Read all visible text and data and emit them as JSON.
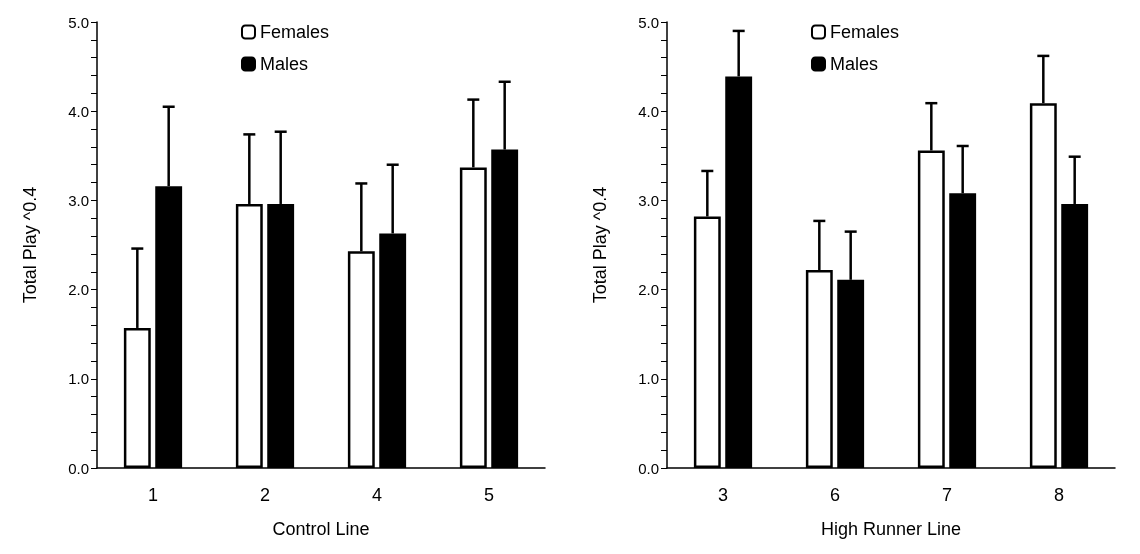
{
  "chart_data": [
    {
      "type": "bar",
      "xlabel": "Control Line",
      "ylabel": "Total Play ^0.4",
      "categories": [
        "1",
        "2",
        "4",
        "5"
      ],
      "series": [
        {
          "name": "Females",
          "color": "#ffffff",
          "values": [
            1.57,
            2.96,
            2.43,
            3.37
          ],
          "errors": [
            [
              1.57,
              2.46
            ],
            [
              2.96,
              3.74
            ],
            [
              2.43,
              3.19
            ],
            [
              3.37,
              4.13
            ]
          ]
        },
        {
          "name": "Males",
          "color": "#000000",
          "values": [
            3.16,
            2.96,
            2.63,
            3.57
          ],
          "errors": [
            [
              3.16,
              4.05
            ],
            [
              2.96,
              3.77
            ],
            [
              2.63,
              3.4
            ],
            [
              3.57,
              4.33
            ]
          ]
        }
      ],
      "ylim": [
        0,
        5
      ],
      "yticks": [
        {
          "value": 0,
          "label": "0.0"
        },
        {
          "value": 0.2,
          "label": null
        },
        {
          "value": 0.4,
          "label": null
        },
        {
          "value": 0.6,
          "label": null
        },
        {
          "value": 0.8,
          "label": null
        },
        {
          "value": 1,
          "label": "1.0"
        },
        {
          "value": 1.2,
          "label": null
        },
        {
          "value": 1.4,
          "label": null
        },
        {
          "value": 1.6,
          "label": null
        },
        {
          "value": 1.8,
          "label": null
        },
        {
          "value": 2,
          "label": "2.0"
        },
        {
          "value": 2.2,
          "label": null
        },
        {
          "value": 2.4,
          "label": null
        },
        {
          "value": 2.6,
          "label": null
        },
        {
          "value": 2.8,
          "label": null
        },
        {
          "value": 3,
          "label": "3.0"
        },
        {
          "value": 3.2,
          "label": null
        },
        {
          "value": 3.4,
          "label": null
        },
        {
          "value": 3.6,
          "label": null
        },
        {
          "value": 3.8,
          "label": null
        },
        {
          "value": 4,
          "label": "4.0"
        },
        {
          "value": 4.2,
          "label": null
        },
        {
          "value": 4.4,
          "label": null
        },
        {
          "value": 4.6,
          "label": null
        },
        {
          "value": 4.8,
          "label": null
        },
        {
          "value": 5,
          "label": "5.0"
        }
      ],
      "grid": false,
      "legend": "top"
    },
    {
      "type": "bar",
      "xlabel": "High Runner Line",
      "ylabel": "Total Play ^0.4",
      "categories": [
        "3",
        "6",
        "7",
        "8"
      ],
      "series": [
        {
          "name": "Females",
          "color": "#ffffff",
          "values": [
            2.82,
            2.22,
            3.56,
            4.09
          ],
          "errors": [
            [
              2.82,
              3.33
            ],
            [
              2.22,
              2.77
            ],
            [
              3.56,
              4.09
            ],
            [
              4.09,
              4.62
            ]
          ]
        },
        {
          "name": "Males",
          "color": "#000000",
          "values": [
            4.39,
            2.11,
            3.08,
            2.96
          ],
          "errors": [
            [
              4.39,
              4.9
            ],
            [
              2.11,
              2.65
            ],
            [
              3.08,
              3.61
            ],
            [
              2.96,
              3.49
            ]
          ]
        }
      ],
      "ylim": [
        0,
        5
      ],
      "yticks": [
        {
          "value": 0,
          "label": "0.0"
        },
        {
          "value": 0.2,
          "label": null
        },
        {
          "value": 0.4,
          "label": null
        },
        {
          "value": 0.6,
          "label": null
        },
        {
          "value": 0.8,
          "label": null
        },
        {
          "value": 1,
          "label": "1.0"
        },
        {
          "value": 1.2,
          "label": null
        },
        {
          "value": 1.4,
          "label": null
        },
        {
          "value": 1.6,
          "label": null
        },
        {
          "value": 1.8,
          "label": null
        },
        {
          "value": 2,
          "label": "2.0"
        },
        {
          "value": 2.2,
          "label": null
        },
        {
          "value": 2.4,
          "label": null
        },
        {
          "value": 2.6,
          "label": null
        },
        {
          "value": 2.8,
          "label": null
        },
        {
          "value": 3,
          "label": "3.0"
        },
        {
          "value": 3.2,
          "label": null
        },
        {
          "value": 3.4,
          "label": null
        },
        {
          "value": 3.6,
          "label": null
        },
        {
          "value": 3.8,
          "label": null
        },
        {
          "value": 4,
          "label": "4.0"
        },
        {
          "value": 4.2,
          "label": null
        },
        {
          "value": 4.4,
          "label": null
        },
        {
          "value": 4.6,
          "label": null
        },
        {
          "value": 4.8,
          "label": null
        },
        {
          "value": 5,
          "label": "5.0"
        }
      ],
      "grid": false,
      "legend": "top"
    }
  ]
}
